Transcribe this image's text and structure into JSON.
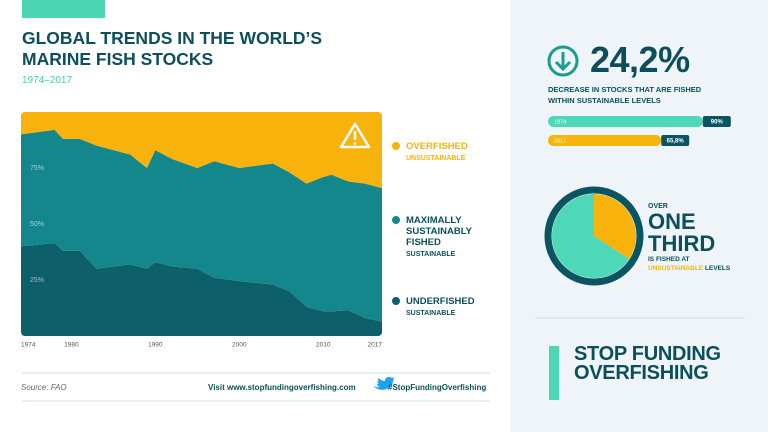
{
  "chart_data": [
    {
      "type": "area",
      "stacked": true,
      "title": "GLOBAL TRENDS IN THE WORLD’S MARINE FISH STOCKS",
      "subtitle": "1974–2017",
      "x": [
        1974,
        1978,
        1979,
        1981,
        1983,
        1987,
        1989,
        1990,
        1992,
        1995,
        1997,
        2000,
        2004,
        2006,
        2008,
        2010,
        2011,
        2013,
        2015,
        2017
      ],
      "series": [
        {
          "name": "UNDERFISHED",
          "status": "SUSTAINABLE",
          "color": "#0d5f6a",
          "values": [
            40,
            41.5,
            38,
            38,
            30,
            32,
            30,
            33,
            31,
            30,
            26,
            24.5,
            23,
            20,
            13,
            11,
            11,
            11.5,
            8,
            6.5
          ]
        },
        {
          "name": "MAXIMALLY SUSTAINABLY FISHED",
          "status": "SUSTAINABLE",
          "color": "#13878b",
          "values": [
            50,
            50.5,
            50,
            50,
            55,
            49,
            45,
            50,
            48,
            45,
            52,
            50.5,
            54,
            53,
            55,
            60,
            61,
            57.5,
            60,
            59.5
          ]
        },
        {
          "name": "OVERFISHED",
          "status": "UNSUSTAINABLE",
          "color": "#f7b20c",
          "values": [
            10,
            8,
            12,
            12,
            15,
            19,
            25,
            17,
            21,
            25,
            22,
            25,
            23,
            27,
            32,
            29,
            28,
            31,
            32,
            34
          ]
        }
      ],
      "xlim": [
        1974,
        2017
      ],
      "xticks": [
        1974,
        1980,
        1990,
        2000,
        2010,
        2017
      ],
      "ylim": [
        0,
        100
      ],
      "yticks": [
        {
          "value": 25,
          "label": "25%"
        },
        {
          "value": 50,
          "label": "50%"
        },
        {
          "value": 75,
          "label": "75%"
        }
      ],
      "grid": false
    },
    {
      "type": "bar",
      "orientation": "horizontal",
      "categories": [
        "1974",
        "2017"
      ],
      "values": [
        90,
        65.8
      ],
      "value_labels": [
        "90%",
        "65,8%"
      ],
      "colors": [
        "#4fd8b7",
        "#f5b50a"
      ],
      "xlim": [
        0,
        100
      ]
    },
    {
      "type": "pie",
      "values": [
        34.2,
        65.8
      ],
      "colors": [
        "#f7b20c",
        "#4fd8b7"
      ]
    }
  ],
  "stat": {
    "value": "24,2%",
    "caption": "DECREASE IN STOCKS THAT ARE FISHED WITHIN SUSTAINABLE LEVELS"
  },
  "pie_text": {
    "over": "OVER",
    "headline": "ONE THIRD",
    "note": "IS FISHED AT",
    "highlight": "UNSUSTAINABLE",
    "note_end": "LEVELS"
  },
  "footer": {
    "source": "Source: FAO",
    "visit": "Visit www.stopfundingoverfishing.com",
    "hashtag": "#StopFundingOverfishing"
  },
  "cta": "STOP FUNDING OVERFISHING"
}
